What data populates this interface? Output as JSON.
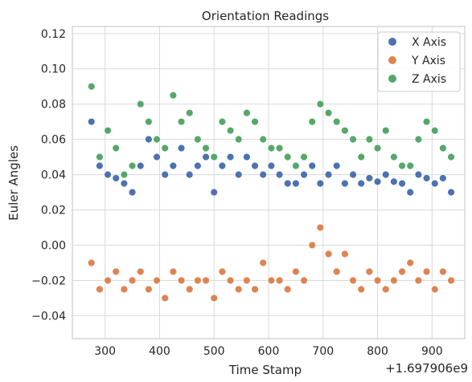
{
  "chart_data": {
    "type": "scatter",
    "title": "Orientation Readings",
    "xlabel": "Time Stamp",
    "ylabel": "Euler Angles",
    "x_offset_label": "+1.697906e9",
    "xlim": [
      240,
      960
    ],
    "ylim": [
      -0.053,
      0.124
    ],
    "x_ticks": [
      300,
      400,
      500,
      600,
      700,
      800,
      900
    ],
    "x_tick_labels": [
      "300",
      "400",
      "500",
      "600",
      "700",
      "800",
      "900"
    ],
    "y_ticks": [
      -0.04,
      -0.02,
      0.0,
      0.02,
      0.04,
      0.06,
      0.08,
      0.1,
      0.12
    ],
    "y_tick_labels": [
      "−0.04",
      "−0.02",
      "0.00",
      "0.02",
      "0.04",
      "0.06",
      "0.08",
      "0.10",
      "0.12"
    ],
    "grid": true,
    "legend_position": "top-right",
    "series": [
      {
        "name": "X Axis",
        "color": "#4c72b0",
        "x": [
          275,
          290,
          305,
          320,
          335,
          350,
          365,
          380,
          395,
          410,
          425,
          440,
          455,
          470,
          485,
          500,
          515,
          530,
          545,
          560,
          575,
          590,
          605,
          620,
          635,
          650,
          665,
          680,
          695,
          710,
          725,
          740,
          755,
          770,
          785,
          800,
          815,
          830,
          845,
          860,
          875,
          890,
          905,
          920,
          935
        ],
        "y": [
          0.07,
          0.045,
          0.04,
          0.038,
          0.035,
          0.03,
          0.045,
          0.06,
          0.05,
          0.04,
          0.045,
          0.055,
          0.04,
          0.045,
          0.05,
          0.03,
          0.045,
          0.05,
          0.04,
          0.05,
          0.045,
          0.04,
          0.045,
          0.04,
          0.035,
          0.035,
          0.04,
          0.045,
          0.035,
          0.04,
          0.045,
          0.035,
          0.04,
          0.035,
          0.038,
          0.036,
          0.04,
          0.036,
          0.035,
          0.03,
          0.04,
          0.038,
          0.035,
          0.038,
          0.03
        ]
      },
      {
        "name": "Y Axis",
        "color": "#dd8452",
        "x": [
          275,
          290,
          305,
          320,
          335,
          350,
          365,
          380,
          395,
          410,
          425,
          440,
          455,
          470,
          485,
          500,
          515,
          530,
          545,
          560,
          575,
          590,
          605,
          620,
          635,
          650,
          665,
          680,
          695,
          710,
          725,
          740,
          755,
          770,
          785,
          800,
          815,
          830,
          845,
          860,
          875,
          890,
          905,
          920,
          935
        ],
        "y": [
          -0.01,
          -0.025,
          -0.02,
          -0.015,
          -0.025,
          -0.02,
          -0.015,
          -0.025,
          -0.02,
          -0.03,
          -0.015,
          -0.02,
          -0.025,
          -0.02,
          -0.02,
          -0.03,
          -0.015,
          -0.02,
          -0.025,
          -0.02,
          -0.025,
          -0.01,
          -0.02,
          -0.02,
          -0.025,
          -0.015,
          -0.02,
          0.0,
          0.01,
          -0.005,
          -0.015,
          -0.005,
          -0.02,
          -0.025,
          -0.015,
          -0.02,
          -0.025,
          -0.02,
          -0.015,
          -0.01,
          -0.02,
          -0.015,
          -0.025,
          -0.015,
          -0.02
        ]
      },
      {
        "name": "Z Axis",
        "color": "#55a868",
        "x": [
          275,
          290,
          305,
          320,
          335,
          350,
          365,
          380,
          395,
          410,
          425,
          440,
          455,
          470,
          485,
          500,
          515,
          530,
          545,
          560,
          575,
          590,
          605,
          620,
          635,
          650,
          665,
          680,
          695,
          710,
          725,
          740,
          755,
          770,
          785,
          800,
          815,
          830,
          845,
          860,
          875,
          890,
          905,
          920,
          935
        ],
        "y": [
          0.09,
          0.05,
          0.065,
          0.055,
          0.04,
          0.045,
          0.08,
          0.07,
          0.06,
          0.055,
          0.085,
          0.07,
          0.075,
          0.06,
          0.055,
          0.05,
          0.07,
          0.065,
          0.06,
          0.075,
          0.07,
          0.06,
          0.055,
          0.055,
          0.05,
          0.045,
          0.05,
          0.07,
          0.08,
          0.075,
          0.07,
          0.065,
          0.06,
          0.05,
          0.06,
          0.055,
          0.065,
          0.05,
          0.045,
          0.045,
          0.06,
          0.07,
          0.065,
          0.055,
          0.05
        ]
      }
    ]
  }
}
